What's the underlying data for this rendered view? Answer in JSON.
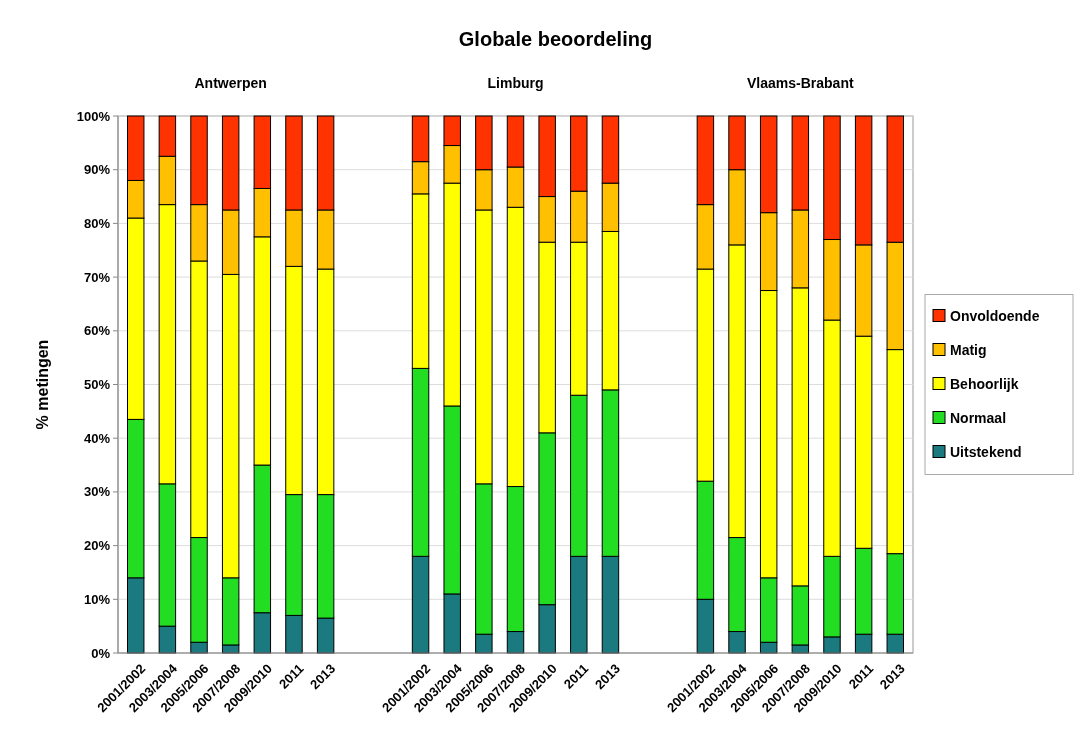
{
  "chart_data": {
    "type": "bar",
    "title": "Globale beoordeling",
    "ylabel": "% metingen",
    "stacked": true,
    "categories": [
      "2001/2002",
      "2003/2004",
      "2005/2006",
      "2007/2008",
      "2009/2010",
      "2011",
      "2013",
      null,
      null,
      "2001/2002",
      "2003/2004",
      "2005/2006",
      "2007/2008",
      "2009/2010",
      "2011",
      "2013",
      null,
      null,
      "2001/2002",
      "2003/2004",
      "2005/2006",
      "2007/2008",
      "2009/2010",
      "2011",
      "2013"
    ],
    "annotations": [
      "Antwerpen",
      "Limburg",
      "Vlaams-Brabant"
    ],
    "series": [
      {
        "name": "Uitstekend",
        "color": "#1a7a80",
        "values": [
          14,
          5,
          2,
          1.5,
          7.5,
          7,
          6.5,
          null,
          null,
          18,
          11,
          3.5,
          4,
          9,
          18,
          18,
          null,
          null,
          10,
          4,
          2,
          1.5,
          3,
          3.5,
          3.5
        ]
      },
      {
        "name": "Normaal",
        "color": "#22dd22",
        "values": [
          29.5,
          26.5,
          19.5,
          12.5,
          27.5,
          22.5,
          23,
          null,
          null,
          35,
          35,
          28,
          27,
          32,
          30,
          31,
          null,
          null,
          22,
          17.5,
          12,
          11,
          15,
          16,
          15
        ]
      },
      {
        "name": "Behoorlijk",
        "color": "#ffff00",
        "values": [
          37.5,
          52,
          51.5,
          56.5,
          42.5,
          42.5,
          42,
          null,
          null,
          32.5,
          41.5,
          51,
          52,
          35.5,
          28.5,
          29.5,
          null,
          null,
          39.5,
          54.5,
          53.5,
          55.5,
          44,
          39.5,
          38
        ]
      },
      {
        "name": "Matig",
        "color": "#ffc000",
        "values": [
          7,
          9,
          10.5,
          12,
          9,
          10.5,
          11,
          null,
          null,
          6,
          7,
          7.5,
          7.5,
          8.5,
          9.5,
          9,
          null,
          null,
          12,
          14,
          14.5,
          14.5,
          15,
          17,
          20
        ]
      },
      {
        "name": "Onvoldoende",
        "color": "#ff3300",
        "values": [
          12,
          7.5,
          16.5,
          17.5,
          13.5,
          17.5,
          17.5,
          null,
          null,
          8.5,
          5.5,
          10,
          9.5,
          15,
          14,
          12.5,
          null,
          null,
          16.5,
          10,
          18,
          17.5,
          23,
          24,
          23.5
        ]
      }
    ],
    "ylim": [
      0,
      100
    ],
    "yticks": [
      {
        "value": 0,
        "label": "0%"
      },
      {
        "value": 10,
        "label": "10%"
      },
      {
        "value": 20,
        "label": "20%"
      },
      {
        "value": 30,
        "label": "30%"
      },
      {
        "value": 40,
        "label": "40%"
      },
      {
        "value": 50,
        "label": "50%"
      },
      {
        "value": 60,
        "label": "60%"
      },
      {
        "value": 70,
        "label": "70%"
      },
      {
        "value": 80,
        "label": "80%"
      },
      {
        "value": 90,
        "label": "90%"
      },
      {
        "value": 100,
        "label": "100%"
      }
    ],
    "grid": "y",
    "legend": "right"
  }
}
